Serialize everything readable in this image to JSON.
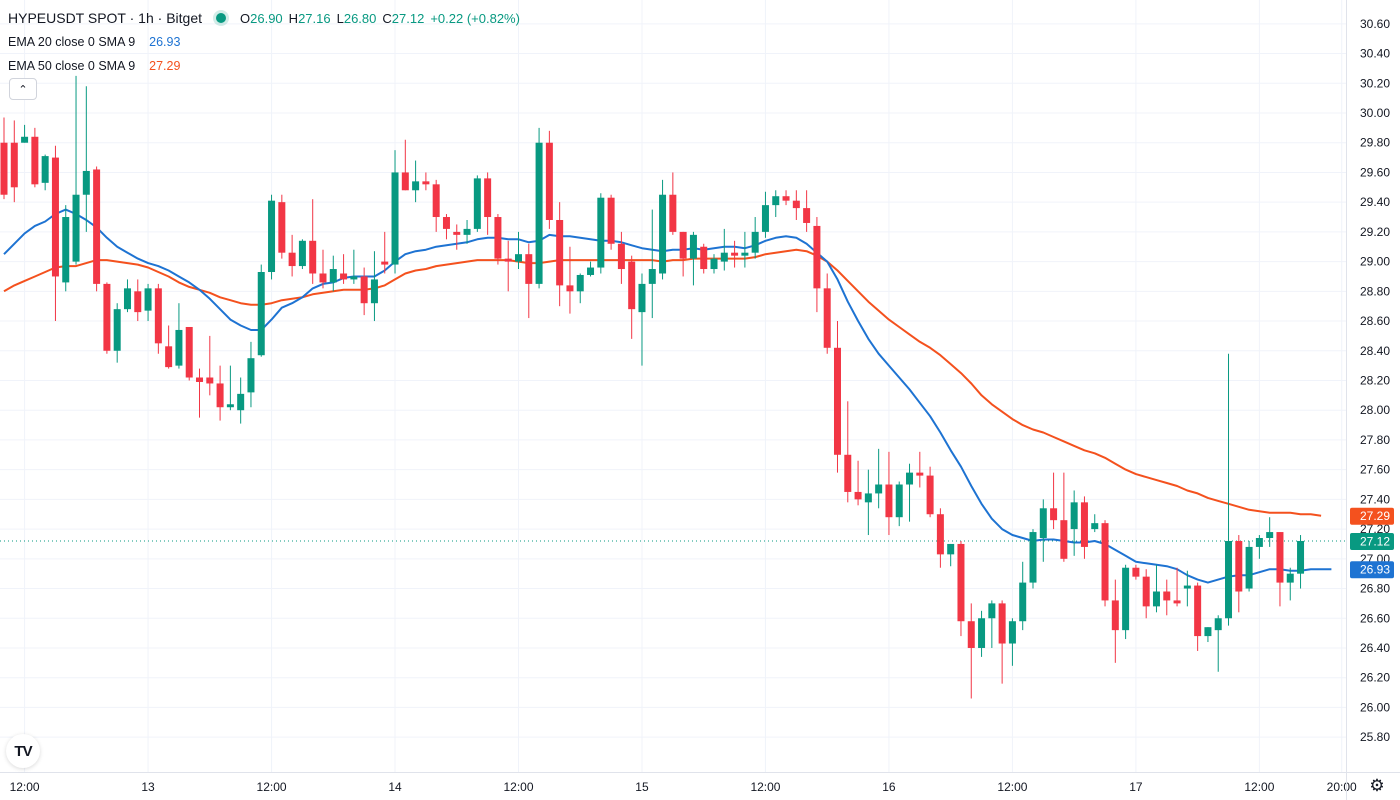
{
  "header": {
    "symbol": "HYPEUSDT SPOT · 1h · Bitget",
    "ohlc": {
      "o_label": "O",
      "o_value": "26.90",
      "h_label": "H",
      "h_value": "27.16",
      "l_label": "L",
      "l_value": "26.80",
      "c_label": "C",
      "c_value": "27.12",
      "change": "+0.22 (+0.82%)"
    }
  },
  "indicators": [
    {
      "name": "EMA 20 close 0 SMA 9",
      "value": "26.93",
      "color": "#2962ff"
    },
    {
      "name": "EMA 50 close 0 SMA 9",
      "value": "27.29",
      "color": "#f7525f"
    }
  ],
  "colors": {
    "up": "#089981",
    "down": "#f23645",
    "ema20": "#1e73d2",
    "ema50": "#f4511e",
    "grid": "#f0f3fa"
  },
  "icons": {
    "collapse": "chevron-up-icon",
    "logo": "tradingview-logo-icon",
    "settings": "gear-icon"
  },
  "logo_text": "TV",
  "chart_data": {
    "type": "candlestick",
    "title": "HYPEUSDT SPOT · 1h · Bitget",
    "ylim": [
      25.7,
      30.72
    ],
    "y_ticks": [
      "25.80",
      "26.00",
      "26.20",
      "26.40",
      "26.60",
      "26.80",
      "27.00",
      "27.20",
      "27.40",
      "27.60",
      "27.80",
      "28.00",
      "28.20",
      "28.40",
      "28.60",
      "28.80",
      "29.00",
      "29.20",
      "29.40",
      "29.60",
      "29.80",
      "30.00",
      "30.20",
      "30.40",
      "30.60"
    ],
    "x_ticks": [
      {
        "label": "12:00",
        "index": 2
      },
      {
        "label": "13",
        "index": 14
      },
      {
        "label": "12:00",
        "index": 26
      },
      {
        "label": "14",
        "index": 38
      },
      {
        "label": "12:00",
        "index": 50
      },
      {
        "label": "15",
        "index": 62
      },
      {
        "label": "12:00",
        "index": 74
      },
      {
        "label": "16",
        "index": 86
      },
      {
        "label": "12:00",
        "index": 98
      },
      {
        "label": "17",
        "index": 110
      },
      {
        "label": "12:00",
        "index": 122
      },
      {
        "label": "20:00",
        "index": 130
      }
    ],
    "candles": [
      [
        29.8,
        29.97,
        29.42,
        29.45
      ],
      [
        29.8,
        29.95,
        29.4,
        29.5
      ],
      [
        29.8,
        29.92,
        29.8,
        29.84
      ],
      [
        29.84,
        29.9,
        29.5,
        29.52
      ],
      [
        29.53,
        29.72,
        29.48,
        29.71
      ],
      [
        29.7,
        29.78,
        28.6,
        28.9
      ],
      [
        28.86,
        29.38,
        28.8,
        29.3
      ],
      [
        29.0,
        30.25,
        28.98,
        29.45
      ],
      [
        29.45,
        30.18,
        29.2,
        29.61
      ],
      [
        29.62,
        29.64,
        28.8,
        28.85
      ],
      [
        28.85,
        28.86,
        28.38,
        28.4
      ],
      [
        28.4,
        28.72,
        28.32,
        28.68
      ],
      [
        28.68,
        28.88,
        28.66,
        28.82
      ],
      [
        28.8,
        28.88,
        28.6,
        28.66
      ],
      [
        28.67,
        28.85,
        28.6,
        28.82
      ],
      [
        28.82,
        28.85,
        28.38,
        28.45
      ],
      [
        28.43,
        28.57,
        28.28,
        28.29
      ],
      [
        28.3,
        28.72,
        28.28,
        28.54
      ],
      [
        28.56,
        28.56,
        28.2,
        28.22
      ],
      [
        28.22,
        28.28,
        27.95,
        28.19
      ],
      [
        28.22,
        28.5,
        28.1,
        28.18
      ],
      [
        28.18,
        28.3,
        27.93,
        28.02
      ],
      [
        28.02,
        28.3,
        28.0,
        28.04
      ],
      [
        28.0,
        28.22,
        27.91,
        28.11
      ],
      [
        28.12,
        28.46,
        28.02,
        28.35
      ],
      [
        28.37,
        28.98,
        28.36,
        28.93
      ],
      [
        28.93,
        29.45,
        28.88,
        29.41
      ],
      [
        29.4,
        29.45,
        29.02,
        29.06
      ],
      [
        29.06,
        29.18,
        28.9,
        28.97
      ],
      [
        28.97,
        29.15,
        28.95,
        29.14
      ],
      [
        29.14,
        29.42,
        28.85,
        28.92
      ],
      [
        28.92,
        29.08,
        28.82,
        28.86
      ],
      [
        28.86,
        29.04,
        28.8,
        28.95
      ],
      [
        28.92,
        29.05,
        28.85,
        28.88
      ],
      [
        28.88,
        29.08,
        28.85,
        28.9
      ],
      [
        28.9,
        28.96,
        28.64,
        28.72
      ],
      [
        28.72,
        29.07,
        28.6,
        28.88
      ],
      [
        29.0,
        29.2,
        28.92,
        28.98
      ],
      [
        28.98,
        29.75,
        28.92,
        29.6
      ],
      [
        29.6,
        29.82,
        29.48,
        29.48
      ],
      [
        29.48,
        29.68,
        29.4,
        29.54
      ],
      [
        29.54,
        29.6,
        29.48,
        29.52
      ],
      [
        29.52,
        29.55,
        29.2,
        29.3
      ],
      [
        29.3,
        29.32,
        29.15,
        29.22
      ],
      [
        29.2,
        29.25,
        29.08,
        29.18
      ],
      [
        29.18,
        29.28,
        29.12,
        29.22
      ],
      [
        29.22,
        29.58,
        29.2,
        29.56
      ],
      [
        29.56,
        29.6,
        29.18,
        29.3
      ],
      [
        29.3,
        29.32,
        28.98,
        29.02
      ],
      [
        29.02,
        29.14,
        28.8,
        29.0
      ],
      [
        29.0,
        29.2,
        28.95,
        29.05
      ],
      [
        29.05,
        29.12,
        28.62,
        28.85
      ],
      [
        28.85,
        29.9,
        28.82,
        29.8
      ],
      [
        29.8,
        29.88,
        29.22,
        29.28
      ],
      [
        29.28,
        29.4,
        28.7,
        28.84
      ],
      [
        28.84,
        29.1,
        28.65,
        28.8
      ],
      [
        28.8,
        28.92,
        28.72,
        28.91
      ],
      [
        28.91,
        29.0,
        28.9,
        28.96
      ],
      [
        28.96,
        29.46,
        28.92,
        29.43
      ],
      [
        29.43,
        29.45,
        29.08,
        29.12
      ],
      [
        29.12,
        29.2,
        28.85,
        28.95
      ],
      [
        29.0,
        29.04,
        28.48,
        28.68
      ],
      [
        28.66,
        28.92,
        28.3,
        28.85
      ],
      [
        28.85,
        29.35,
        28.62,
        28.95
      ],
      [
        28.92,
        29.55,
        28.88,
        29.45
      ],
      [
        29.45,
        29.6,
        29.18,
        29.2
      ],
      [
        29.2,
        29.2,
        28.9,
        29.02
      ],
      [
        29.02,
        29.2,
        28.84,
        29.18
      ],
      [
        29.1,
        29.12,
        28.92,
        28.95
      ],
      [
        28.95,
        29.05,
        28.92,
        29.02
      ],
      [
        29.0,
        29.22,
        28.94,
        29.06
      ],
      [
        29.06,
        29.14,
        28.96,
        29.04
      ],
      [
        29.04,
        29.2,
        28.96,
        29.06
      ],
      [
        29.06,
        29.3,
        29.02,
        29.2
      ],
      [
        29.2,
        29.47,
        29.16,
        29.38
      ],
      [
        29.38,
        29.48,
        29.3,
        29.44
      ],
      [
        29.44,
        29.48,
        29.38,
        29.41
      ],
      [
        29.41,
        29.48,
        29.28,
        29.36
      ],
      [
        29.36,
        29.48,
        29.2,
        29.26
      ],
      [
        29.24,
        29.3,
        28.66,
        28.82
      ],
      [
        28.82,
        28.92,
        28.38,
        28.42
      ],
      [
        28.42,
        28.6,
        27.58,
        27.7
      ],
      [
        27.7,
        28.06,
        27.38,
        27.45
      ],
      [
        27.45,
        27.66,
        27.36,
        27.4
      ],
      [
        27.38,
        27.6,
        27.16,
        27.44
      ],
      [
        27.44,
        27.74,
        27.34,
        27.5
      ],
      [
        27.5,
        27.72,
        27.16,
        27.28
      ],
      [
        27.28,
        27.52,
        27.22,
        27.5
      ],
      [
        27.5,
        27.64,
        27.25,
        27.58
      ],
      [
        27.58,
        27.72,
        27.48,
        27.56
      ],
      [
        27.56,
        27.62,
        27.28,
        27.3
      ],
      [
        27.3,
        27.34,
        26.94,
        27.03
      ],
      [
        27.03,
        27.1,
        26.95,
        27.1
      ],
      [
        27.1,
        27.12,
        26.48,
        26.58
      ],
      [
        26.58,
        26.7,
        26.06,
        26.4
      ],
      [
        26.4,
        26.65,
        26.34,
        26.6
      ],
      [
        26.6,
        26.72,
        26.4,
        26.7
      ],
      [
        26.7,
        26.72,
        26.16,
        26.43
      ],
      [
        26.43,
        26.6,
        26.28,
        26.58
      ],
      [
        26.58,
        26.98,
        26.52,
        26.84
      ],
      [
        26.84,
        27.2,
        26.8,
        27.18
      ],
      [
        27.14,
        27.4,
        26.98,
        27.34
      ],
      [
        27.34,
        27.58,
        27.2,
        27.26
      ],
      [
        27.26,
        27.58,
        26.98,
        27.0
      ],
      [
        27.2,
        27.46,
        27.02,
        27.38
      ],
      [
        27.38,
        27.42,
        27.0,
        27.08
      ],
      [
        27.2,
        27.3,
        27.18,
        27.24
      ],
      [
        27.24,
        27.26,
        26.68,
        26.72
      ],
      [
        26.72,
        26.86,
        26.3,
        26.52
      ],
      [
        26.52,
        26.96,
        26.46,
        26.94
      ],
      [
        26.94,
        26.96,
        26.86,
        26.88
      ],
      [
        26.88,
        26.93,
        26.6,
        26.68
      ],
      [
        26.68,
        26.96,
        26.64,
        26.78
      ],
      [
        26.78,
        26.86,
        26.62,
        26.72
      ],
      [
        26.72,
        26.94,
        26.68,
        26.7
      ],
      [
        26.8,
        26.92,
        26.68,
        26.82
      ],
      [
        26.82,
        26.84,
        26.38,
        26.48
      ],
      [
        26.48,
        26.54,
        26.44,
        26.54
      ],
      [
        26.52,
        26.62,
        26.24,
        26.6
      ],
      [
        26.6,
        28.38,
        26.55,
        27.12
      ],
      [
        27.12,
        27.16,
        26.64,
        26.78
      ],
      [
        26.8,
        27.12,
        26.78,
        27.08
      ],
      [
        27.08,
        27.16,
        27.0,
        27.14
      ],
      [
        27.14,
        27.28,
        27.08,
        27.18
      ],
      [
        27.18,
        27.18,
        26.68,
        26.84
      ],
      [
        26.84,
        26.94,
        26.72,
        26.9
      ],
      [
        26.9,
        27.16,
        26.8,
        27.12
      ]
    ],
    "series": [
      {
        "name": "EMA 20 close 0 SMA 9",
        "values": [
          29.05,
          29.12,
          29.19,
          29.24,
          29.27,
          29.32,
          29.35,
          29.32,
          29.28,
          29.23,
          29.16,
          29.1,
          29.06,
          29.02,
          28.99,
          28.97,
          28.94,
          28.9,
          28.86,
          28.81,
          28.75,
          28.68,
          28.61,
          28.57,
          28.54,
          28.54,
          28.61,
          28.69,
          28.72,
          28.76,
          28.82,
          28.85,
          28.86,
          28.89,
          28.9,
          28.9,
          28.9,
          28.94,
          29.0,
          29.05,
          29.07,
          29.08,
          29.1,
          29.11,
          29.12,
          29.13,
          29.15,
          29.16,
          29.16,
          29.15,
          29.15,
          29.13,
          29.14,
          29.18,
          29.17,
          29.17,
          29.16,
          29.15,
          29.14,
          29.14,
          29.13,
          29.11,
          29.09,
          29.08,
          29.07,
          29.08,
          29.08,
          29.09,
          29.08,
          29.09,
          29.1,
          29.1,
          29.09,
          29.11,
          29.14,
          29.16,
          29.17,
          29.16,
          29.12,
          29.06,
          29.0,
          28.88,
          28.73,
          28.6,
          28.48,
          28.38,
          28.3,
          28.22,
          28.14,
          28.05,
          27.96,
          27.85,
          27.73,
          27.62,
          27.49,
          27.37,
          27.27,
          27.2,
          27.16,
          27.14,
          27.12,
          27.13,
          27.13,
          27.12,
          27.11,
          27.11,
          27.12,
          27.1,
          27.06,
          27.02,
          26.98,
          26.97,
          26.96,
          26.95,
          26.93,
          26.89,
          26.86,
          26.84,
          26.86,
          26.88,
          26.89,
          26.89,
          26.91,
          26.93,
          26.93,
          26.92,
          26.92,
          26.93,
          26.93,
          26.93
        ]
      },
      {
        "name": "EMA 50 close 0 SMA 9",
        "values": [
          28.8,
          28.84,
          28.87,
          28.9,
          28.93,
          28.96,
          28.97,
          28.97,
          28.99,
          29.01,
          29.01,
          29.0,
          28.99,
          28.98,
          28.96,
          28.93,
          28.9,
          28.86,
          28.83,
          28.81,
          28.79,
          28.76,
          28.74,
          28.72,
          28.71,
          28.71,
          28.72,
          28.74,
          28.75,
          28.76,
          28.78,
          28.79,
          28.8,
          28.81,
          28.81,
          28.81,
          28.82,
          28.84,
          28.88,
          28.92,
          28.94,
          28.95,
          28.97,
          28.98,
          28.99,
          29.0,
          29.01,
          29.01,
          29.01,
          29.01,
          29.0,
          28.99,
          28.99,
          29.0,
          29.01,
          29.01,
          29.01,
          29.01,
          29.01,
          29.01,
          29.01,
          29.01,
          29.01,
          29.01,
          29.0,
          29.01,
          29.01,
          29.02,
          29.02,
          29.02,
          29.02,
          29.02,
          29.02,
          29.03,
          29.05,
          29.06,
          29.07,
          29.08,
          29.07,
          29.04,
          29.0,
          28.94,
          28.87,
          28.8,
          28.73,
          28.67,
          28.61,
          28.56,
          28.51,
          28.46,
          28.42,
          28.37,
          28.31,
          28.25,
          28.18,
          28.1,
          28.04,
          27.99,
          27.94,
          27.9,
          27.87,
          27.85,
          27.82,
          27.79,
          27.76,
          27.73,
          27.71,
          27.68,
          27.64,
          27.6,
          27.57,
          27.55,
          27.53,
          27.51,
          27.49,
          27.46,
          27.44,
          27.41,
          27.39,
          27.37,
          27.35,
          27.33,
          27.32,
          27.31,
          27.31,
          27.31,
          27.3,
          27.3,
          27.29
        ]
      }
    ],
    "last_price": "27.12",
    "axis_labels": {
      "x": "",
      "y": ""
    }
  }
}
